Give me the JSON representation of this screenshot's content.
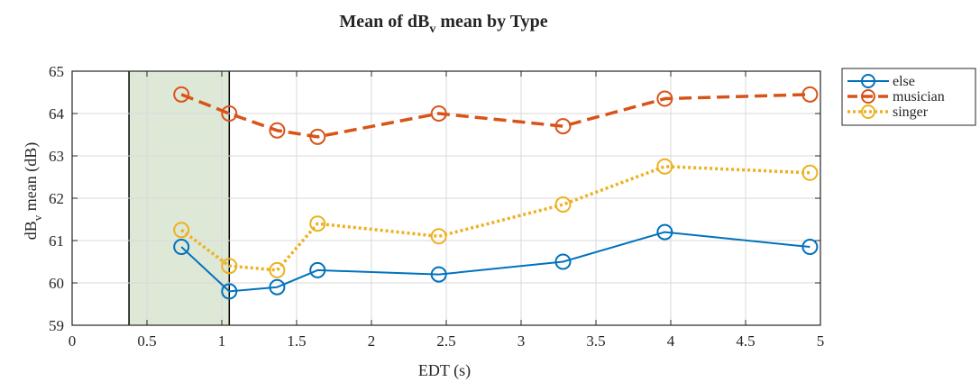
{
  "chart_data": {
    "type": "line",
    "title": {
      "main": "Mean of dB",
      "sub": "v",
      "rest": " mean by Type"
    },
    "xlabel": "EDT (s)",
    "ylabel": {
      "main": "dB",
      "sub": "v",
      "rest": " mean (dB)"
    },
    "xlim": [
      0,
      5
    ],
    "ylim": [
      59,
      65
    ],
    "xticks": [
      0,
      0.5,
      1,
      1.5,
      2,
      2.5,
      3,
      3.5,
      4,
      4.5,
      5
    ],
    "xtick_labels": [
      "0",
      "0.5",
      "1",
      "1.5",
      "2",
      "2.5",
      "3",
      "3.5",
      "4",
      "4.5",
      "5"
    ],
    "yticks": [
      59,
      60,
      61,
      62,
      63,
      64,
      65
    ],
    "ytick_labels": [
      "59",
      "60",
      "61",
      "62",
      "63",
      "64",
      "65"
    ],
    "grid": true,
    "legend": "outside-top-right",
    "shaded_region": {
      "x": [
        0.38,
        1.05
      ],
      "color": "#dde8d6"
    },
    "series": [
      {
        "name": "else",
        "color": "#0072bd",
        "linestyle": "solid",
        "marker": "circle",
        "x": [
          0.73,
          1.05,
          1.37,
          1.64,
          2.45,
          3.28,
          3.96,
          4.93
        ],
        "y": [
          60.85,
          59.8,
          59.9,
          60.3,
          60.2,
          60.5,
          61.2,
          60.85
        ]
      },
      {
        "name": "musician",
        "color": "#d95319",
        "linestyle": "dashed",
        "marker": "circle",
        "x": [
          0.73,
          1.05,
          1.37,
          1.64,
          2.45,
          3.28,
          3.96,
          4.93
        ],
        "y": [
          64.45,
          64.0,
          63.6,
          63.45,
          64.0,
          63.7,
          64.35,
          64.45
        ]
      },
      {
        "name": "singer",
        "color": "#edb120",
        "linestyle": "dotted",
        "marker": "circle",
        "x": [
          0.73,
          1.05,
          1.37,
          1.64,
          2.45,
          3.28,
          3.96,
          4.93
        ],
        "y": [
          61.25,
          60.4,
          60.3,
          61.4,
          61.1,
          61.85,
          62.75,
          62.6
        ]
      }
    ]
  }
}
